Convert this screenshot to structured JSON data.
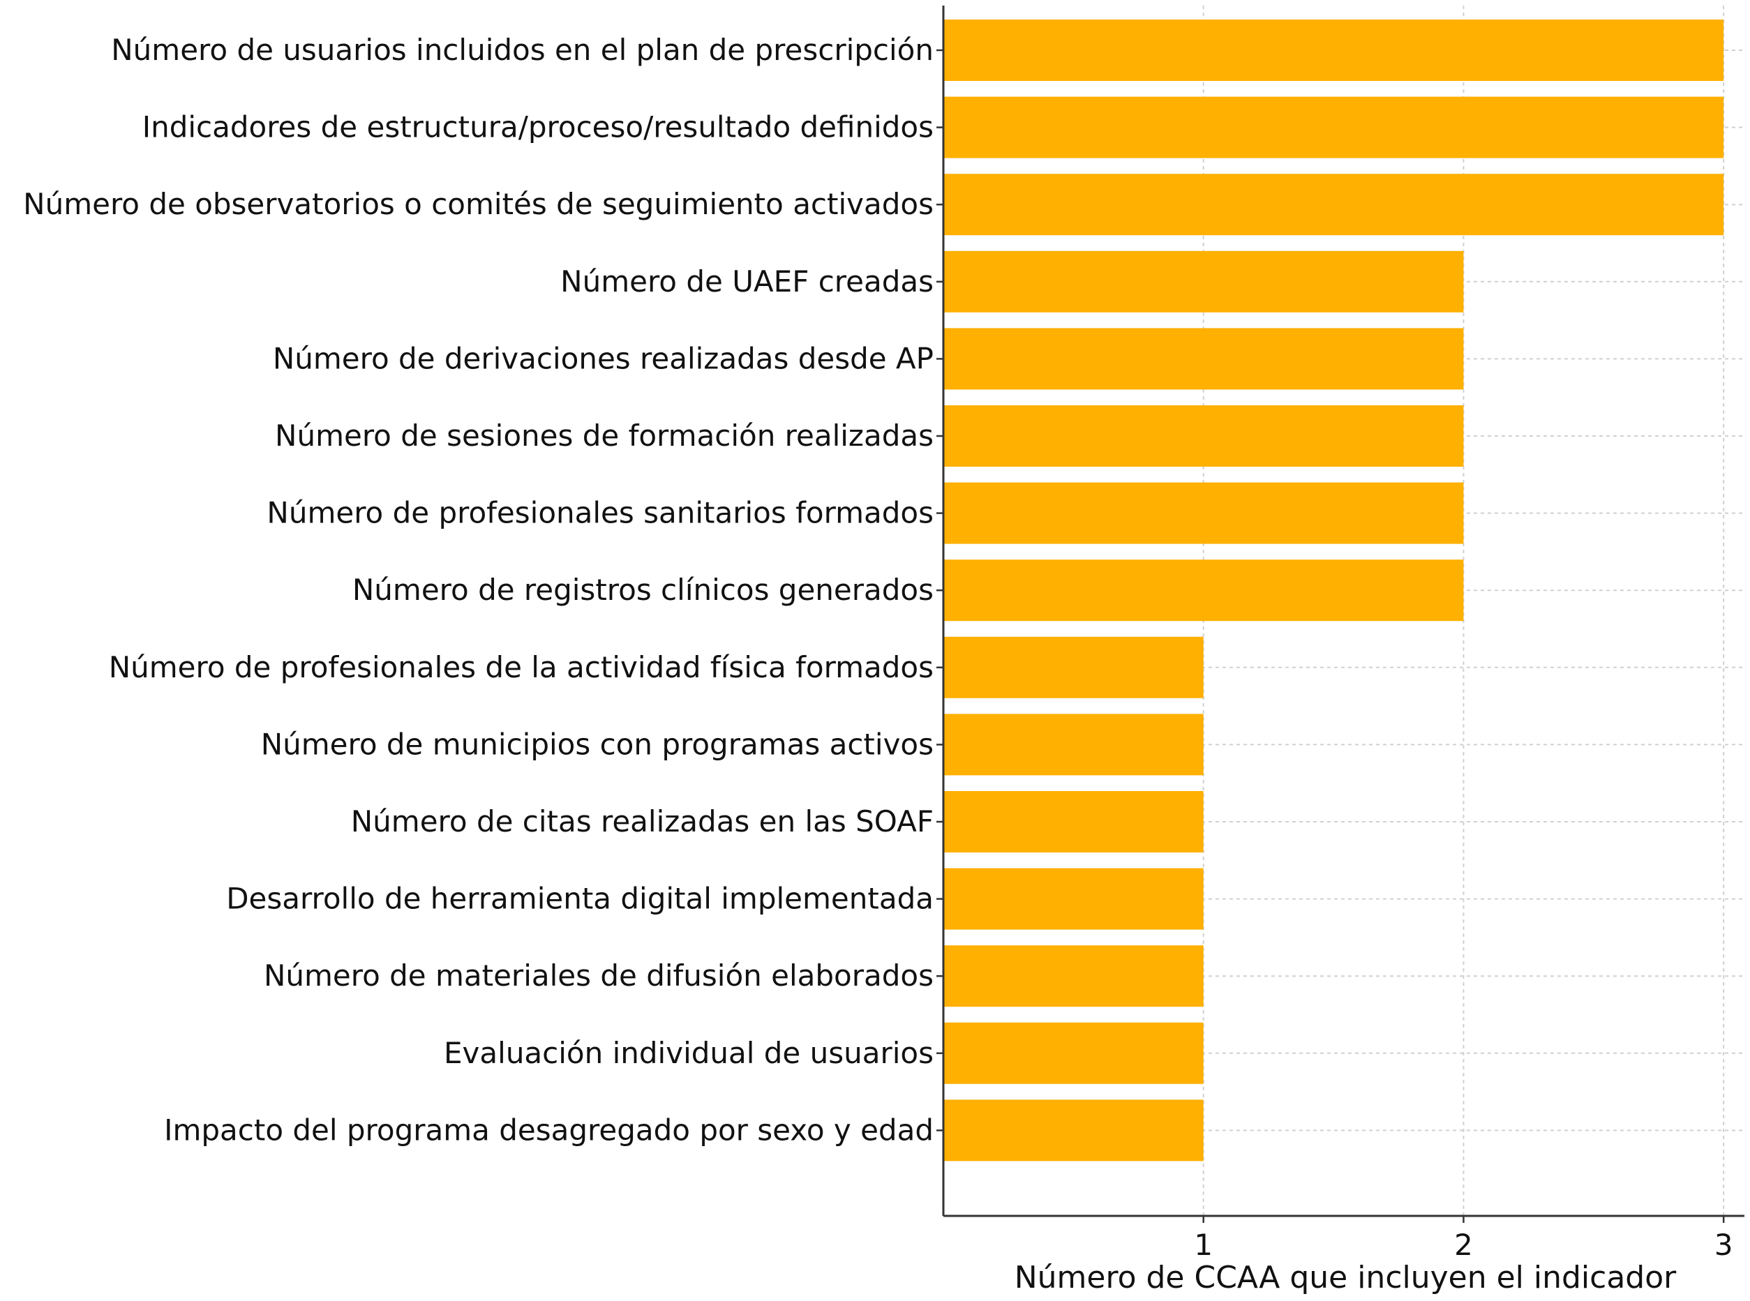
{
  "chart_data": {
    "type": "bar",
    "orientation": "horizontal",
    "categories": [
      "Número de usuarios incluidos en el plan de prescripción",
      "Indicadores de estructura/proceso/resultado definidos",
      "Número de observatorios o comités de seguimiento activados",
      "Número de UAEF creadas",
      "Número de derivaciones realizadas desde AP",
      "Número de sesiones de formación realizadas",
      "Número de profesionales sanitarios formados",
      "Número de registros clínicos generados",
      "Número de profesionales de la actividad física formados",
      "Número de municipios con programas activos",
      "Número de citas realizadas en las SOAF",
      "Desarrollo de herramienta digital implementada",
      "Número de materiales de difusión elaborados",
      "Evaluación individual de usuarios",
      "Impacto del programa desagregado por sexo y edad"
    ],
    "values": [
      3,
      3,
      3,
      2,
      2,
      2,
      2,
      2,
      1,
      1,
      1,
      1,
      1,
      1,
      1
    ],
    "xlabel": "Número de CCAA que incluyen el indicador",
    "xticks": [
      "1",
      "2",
      "3"
    ],
    "xlim": [
      0,
      3.08
    ],
    "grid": true,
    "bar_color": "#FFB000",
    "grid_color": "#d0d0d0",
    "axis_color": "#333333"
  }
}
